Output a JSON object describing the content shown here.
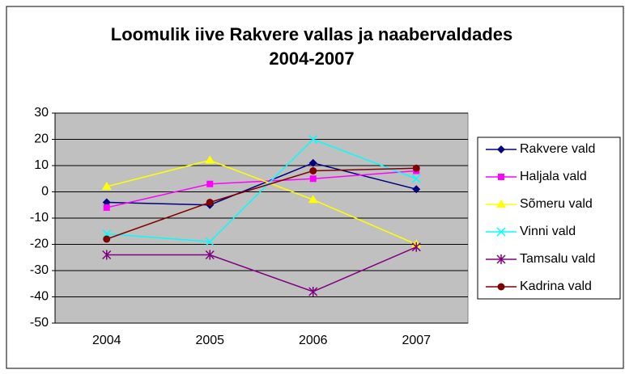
{
  "chart_data": {
    "type": "line",
    "title": [
      "Loomulik iive Rakvere vallas ja naabervaldades",
      "2004-2007"
    ],
    "categories": [
      "2004",
      "2005",
      "2006",
      "2007"
    ],
    "series": [
      {
        "name": "Rakvere vald",
        "color": "#000080",
        "marker": "diamond",
        "values": [
          -4,
          -5,
          11,
          1
        ]
      },
      {
        "name": "Haljala vald",
        "color": "#ff00ff",
        "marker": "square",
        "values": [
          -6,
          3,
          5,
          8
        ]
      },
      {
        "name": "Sõmeru vald",
        "color": "#ffff00",
        "marker": "triangle",
        "values": [
          2,
          12,
          -3,
          -20
        ]
      },
      {
        "name": "Vinni vald",
        "color": "#00ffff",
        "marker": "x",
        "values": [
          -16,
          -19,
          20,
          5
        ]
      },
      {
        "name": "Tamsalu vald",
        "color": "#800080",
        "marker": "star",
        "values": [
          -24,
          -24,
          -38,
          -21
        ]
      },
      {
        "name": "Kadrina vald",
        "color": "#800000",
        "marker": "circle",
        "values": [
          -18,
          -4,
          8,
          9
        ]
      }
    ],
    "ylim": [
      -50,
      30
    ],
    "yticks": [
      -50,
      -40,
      -30,
      -20,
      -10,
      0,
      10,
      20,
      30
    ],
    "grid": true,
    "legend": "right",
    "plot_background": "#c0c0c0"
  }
}
